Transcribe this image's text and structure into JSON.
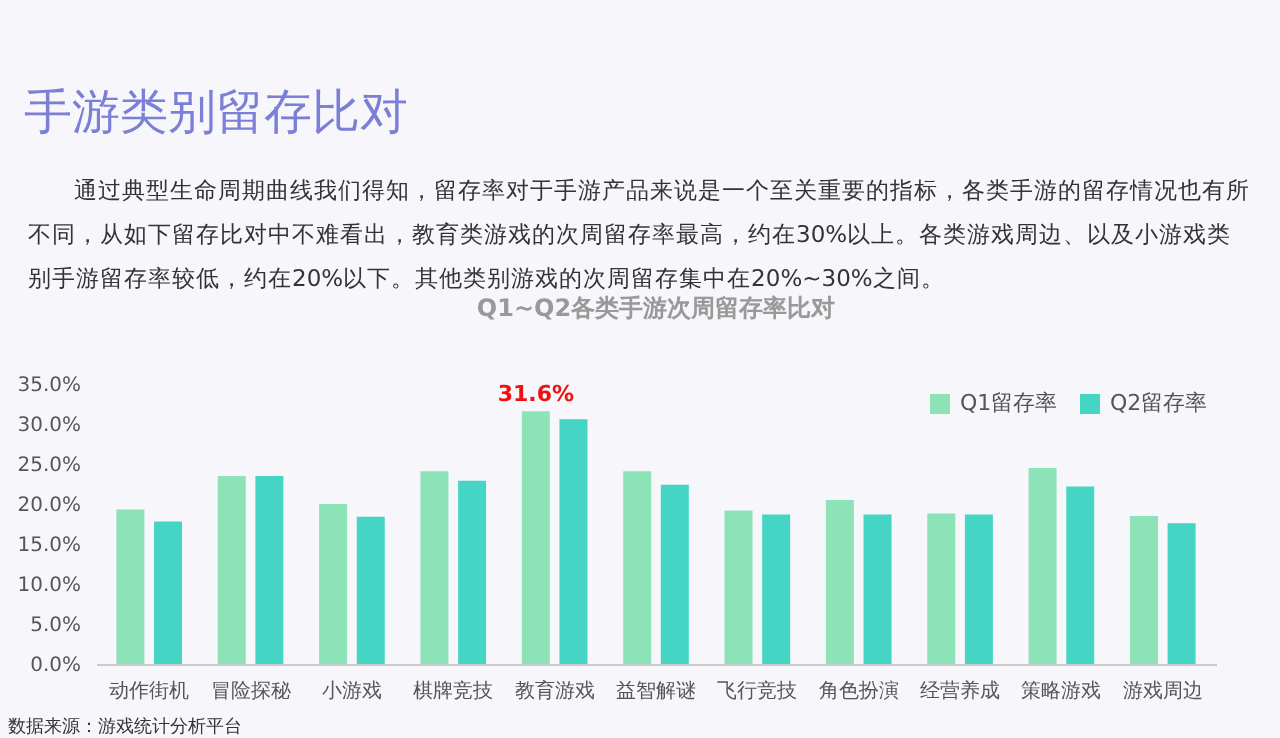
{
  "chart_data": {
    "type": "bar",
    "title": "Q1~Q2各类手游次周留存率比对",
    "annotations": [
      "手游类别留存比对",
      "通过典型生命周期曲线我们得知，留存率对于手游产品来说是一个至关重要的指标，各类手游的留存情况也有所不同，从如下留存比对中不难看出，教育类游戏的次周留存率最高，约在30%以上。各类游戏周边、以及小游戏类别手游留存率较低，约在20%以下。其他类别游戏的次周留存集中在20%~30%之间。",
      "数据来源：游戏统计分析平台"
    ],
    "categories": [
      "动作街机",
      "冒险探秘",
      "小游戏",
      "棋牌竞技",
      "教育游戏",
      "益智解谜",
      "飞行竞技",
      "角色扮演",
      "经营养成",
      "策略游戏",
      "游戏周边"
    ],
    "series": [
      {
        "name": "Q1留存率",
        "color": "#8de3b8",
        "values": [
          19.3,
          23.5,
          20.0,
          24.1,
          31.6,
          24.1,
          19.2,
          20.5,
          18.8,
          24.5,
          18.5
        ],
        "value_labels": [
          null,
          null,
          null,
          null,
          "31.6%",
          null,
          null,
          null,
          null,
          null,
          null
        ]
      },
      {
        "name": "Q2留存率",
        "color": "#45d5c5",
        "values": [
          17.8,
          23.5,
          18.4,
          22.9,
          30.6,
          22.4,
          18.7,
          18.7,
          18.7,
          22.2,
          17.6
        ]
      }
    ],
    "ylim": [
      0,
      35
    ],
    "yticks": [
      {
        "value": 0,
        "label": "0.0%"
      },
      {
        "value": 5,
        "label": "5.0%"
      },
      {
        "value": 10,
        "label": "10.0%"
      },
      {
        "value": 15,
        "label": "15.0%"
      },
      {
        "value": 20,
        "label": "20.0%"
      },
      {
        "value": 25,
        "label": "25.0%"
      },
      {
        "value": 30,
        "label": "30.0%"
      },
      {
        "value": 35,
        "label": "35.0%"
      }
    ],
    "grid": false,
    "legend": "top right"
  }
}
